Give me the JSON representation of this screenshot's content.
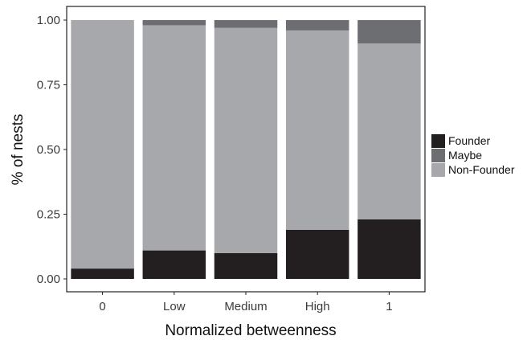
{
  "chart_data": {
    "type": "bar",
    "stacked": true,
    "normalized": true,
    "categories": [
      "0",
      "Low",
      "Medium",
      "High",
      "1"
    ],
    "series": [
      {
        "name": "Founder",
        "color": "#231f20",
        "values": [
          0.04,
          0.11,
          0.1,
          0.19,
          0.23
        ]
      },
      {
        "name": "Non-Founder",
        "color": "#a7a8ab",
        "values": [
          0.96,
          0.87,
          0.87,
          0.77,
          0.68
        ]
      },
      {
        "name": "Maybe",
        "color": "#6d6e71",
        "values": [
          0.0,
          0.02,
          0.03,
          0.04,
          0.09
        ]
      }
    ],
    "xlabel": "Normalized betweenness",
    "ylabel": "% of nests",
    "ylim": [
      0,
      1
    ],
    "yticks": [
      "0.00",
      "0.25",
      "0.50",
      "0.75",
      "1.00"
    ],
    "grid": false,
    "legend": {
      "placement": "right",
      "order": [
        "Founder",
        "Maybe",
        "Non-Founder"
      ]
    }
  }
}
